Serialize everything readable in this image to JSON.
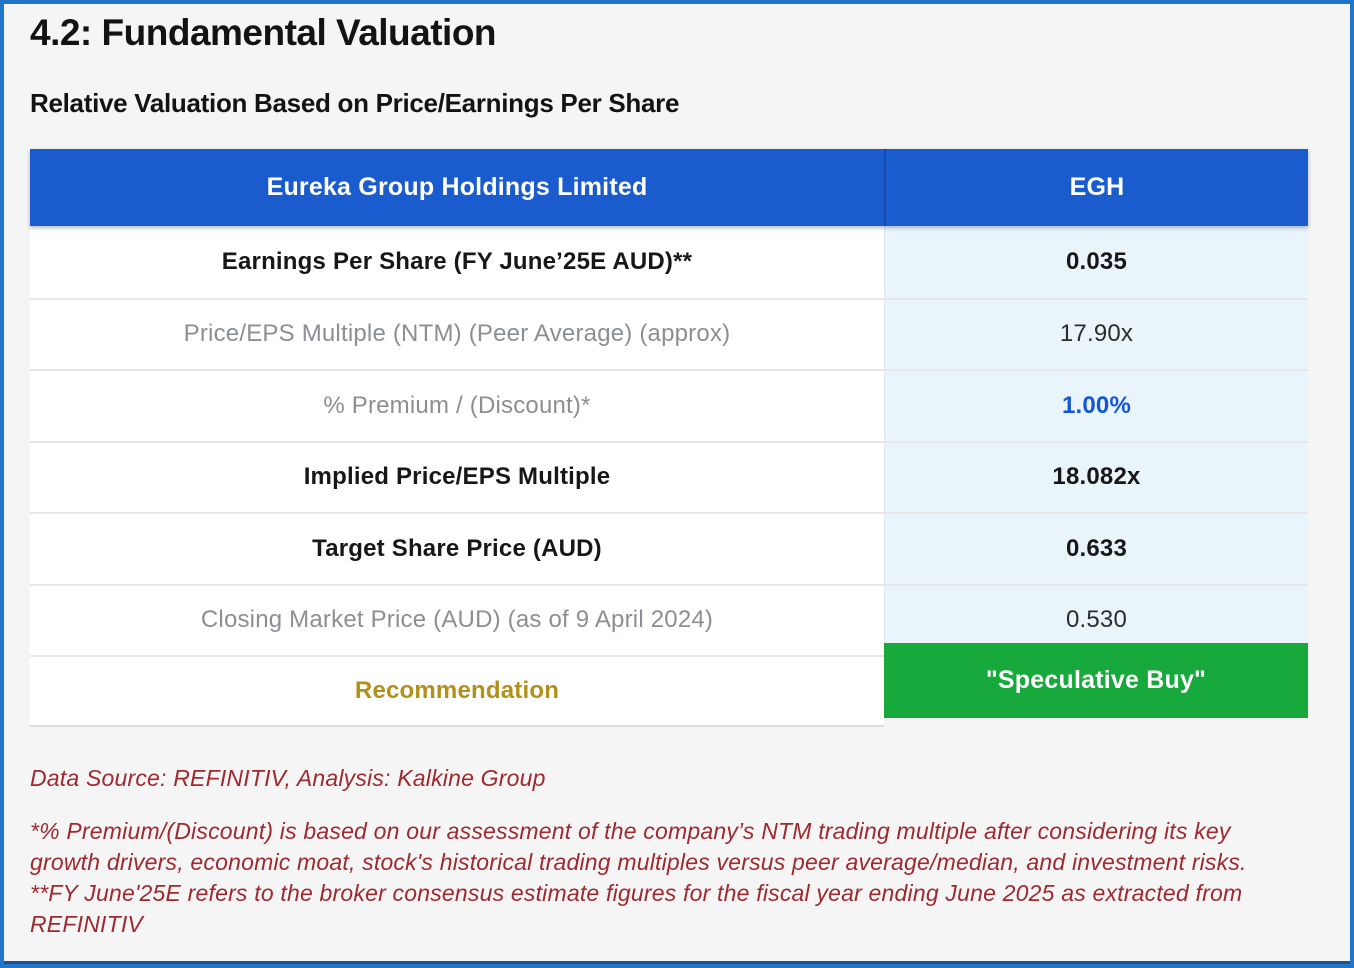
{
  "page": {
    "title": "4.2: Fundamental Valuation",
    "subtitle": "Relative Valuation Based on Price/Earnings Per Share",
    "data_source": "Data Source: REFINITIV, Analysis: Kalkine Group",
    "footnote": "*% Premium/(Discount) is based on our assessment of the company’s NTM trading multiple after considering its key growth drivers, economic moat, stock's historical trading multiples versus peer average/median, and investment risks. **FY June'25E refers to the broker consensus estimate figures for the fiscal year ending June 2025 as extracted from REFINITIV"
  },
  "table": {
    "header": {
      "company": "Eureka Group Holdings Limited",
      "ticker": "EGH"
    },
    "rows": [
      {
        "label": "Earnings Per Share (FY June’25E AUD)**",
        "value": "0.035"
      },
      {
        "label": "Price/EPS Multiple (NTM) (Peer Average) (approx)",
        "value": "17.90x"
      },
      {
        "label": "% Premium / (Discount)*",
        "value": "1.00%"
      },
      {
        "label": "Implied Price/EPS Multiple",
        "value": "18.082x"
      },
      {
        "label": "Target Share Price (AUD)",
        "value": "0.633"
      },
      {
        "label": "Closing Market Price (AUD) (as of 9 April 2024)",
        "value": "0.530"
      },
      {
        "label": "Recommendation",
        "value": "\"Speculative Buy\""
      }
    ]
  },
  "colors": {
    "header_blue": "#1a5bce",
    "value_column_bg": "#eaf4fb",
    "premium_value_blue": "#1157d8",
    "recommendation_green": "#18a93c",
    "recommendation_label_gold": "#b29019",
    "note_dark_red": "#9e292e",
    "frame_border_blue": "#2176ca"
  }
}
